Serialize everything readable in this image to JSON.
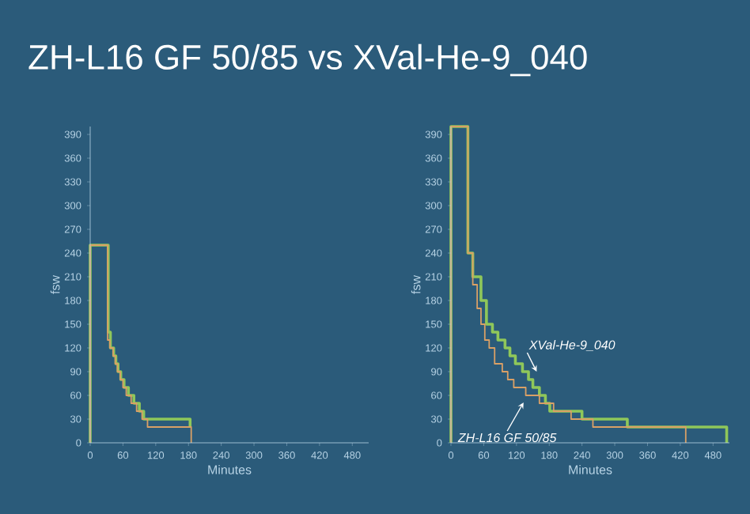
{
  "chart_data": [
    {
      "type": "step",
      "title": "ZH-L16 GF 50/85 vs XVal-He-9_040",
      "xlabel": "Minutes",
      "ylabel": "fsw",
      "xlim": [
        0,
        510
      ],
      "ylim": [
        0,
        400
      ],
      "xticks": [
        0,
        60,
        120,
        180,
        240,
        300,
        360,
        420,
        480
      ],
      "yticks": [
        0,
        30,
        60,
        90,
        120,
        150,
        180,
        210,
        240,
        270,
        300,
        330,
        360,
        390
      ],
      "grid": false,
      "series": [
        {
          "color": "#8fc75a",
          "x": [
            0,
            0,
            33,
            37,
            43,
            47,
            51,
            56,
            62,
            70,
            80,
            90,
            98,
            183
          ],
          "values": [
            0,
            250,
            140,
            120,
            110,
            100,
            90,
            80,
            70,
            60,
            50,
            40,
            30,
            20
          ]
        },
        {
          "color": "#d9a066",
          "x": [
            0,
            0,
            32,
            36,
            42,
            46,
            50,
            55,
            60,
            66,
            75,
            85,
            95,
            105,
            185
          ],
          "values": [
            0,
            250,
            130,
            120,
            110,
            100,
            90,
            80,
            70,
            60,
            50,
            40,
            30,
            20,
            0
          ]
        }
      ]
    },
    {
      "type": "step",
      "xlabel": "Minutes",
      "ylabel": "fsw",
      "xlim": [
        0,
        510
      ],
      "ylim": [
        0,
        400
      ],
      "xticks": [
        0,
        60,
        120,
        180,
        240,
        300,
        360,
        420,
        480
      ],
      "yticks": [
        0,
        30,
        60,
        90,
        120,
        150,
        180,
        210,
        240,
        270,
        300,
        330,
        360,
        390
      ],
      "grid": false,
      "annotations": [
        {
          "text": "XVal-He-9_040",
          "x": 157,
          "y": 90
        },
        {
          "text": "ZH-L16 GF 50/85",
          "x": 133,
          "y": 51
        }
      ],
      "series": [
        {
          "color": "#8fc75a",
          "x": [
            0,
            0,
            31,
            40,
            55,
            65,
            76,
            86,
            99,
            108,
            118,
            131,
            142,
            150,
            162,
            173,
            181,
            240,
            323,
            505
          ],
          "values": [
            0,
            400,
            240,
            210,
            180,
            150,
            140,
            130,
            120,
            110,
            100,
            90,
            80,
            70,
            60,
            50,
            40,
            30,
            20,
            0
          ]
        },
        {
          "color": "#d9a066",
          "x": [
            0,
            0,
            31,
            40,
            48,
            55,
            62,
            70,
            80,
            94,
            104,
            115,
            137,
            162,
            188,
            220,
            260,
            430
          ],
          "values": [
            0,
            400,
            240,
            200,
            170,
            150,
            130,
            120,
            100,
            90,
            80,
            70,
            60,
            50,
            40,
            30,
            20,
            0
          ]
        }
      ]
    }
  ]
}
